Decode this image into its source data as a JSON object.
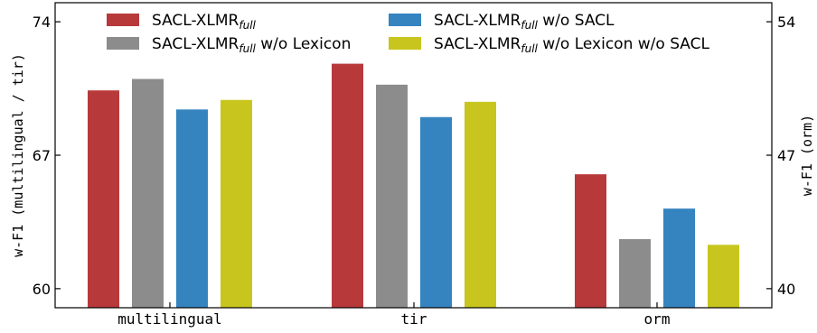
{
  "chart_data": {
    "type": "bar",
    "categories": [
      "multilingual",
      "tir",
      "orm"
    ],
    "ylabel_left": "w-F1 (multilingual / tir)",
    "ylabel_right": "w-F1 (orm)",
    "ylim_left": [
      59,
      75
    ],
    "ylim_right": [
      39,
      55
    ],
    "yticks_left": [
      "60",
      "67",
      "74"
    ],
    "yticks_right": [
      "40",
      "47",
      "54"
    ],
    "grid": false,
    "legend_position": "top",
    "series": [
      {
        "name": "SACL-XLMR",
        "name_sub": "full",
        "name_suffix": "",
        "color": "#b8393a",
        "values": [
          70.4,
          71.8,
          46.0
        ]
      },
      {
        "name": "SACL-XLMR",
        "name_sub": "full",
        "name_suffix": " w/o Lexicon",
        "color": "#8c8c8c",
        "values": [
          71.0,
          70.7,
          42.6
        ]
      },
      {
        "name": "SACL-XLMR",
        "name_sub": "full",
        "name_suffix": " w/o SACL",
        "color": "#3584c0",
        "values": [
          69.4,
          69.0,
          44.2
        ]
      },
      {
        "name": "SACL-XLMR",
        "name_sub": "full",
        "name_suffix": " w/o Lexicon w/o SACL",
        "color": "#c8c61e",
        "values": [
          69.9,
          69.8,
          42.3
        ]
      }
    ]
  }
}
